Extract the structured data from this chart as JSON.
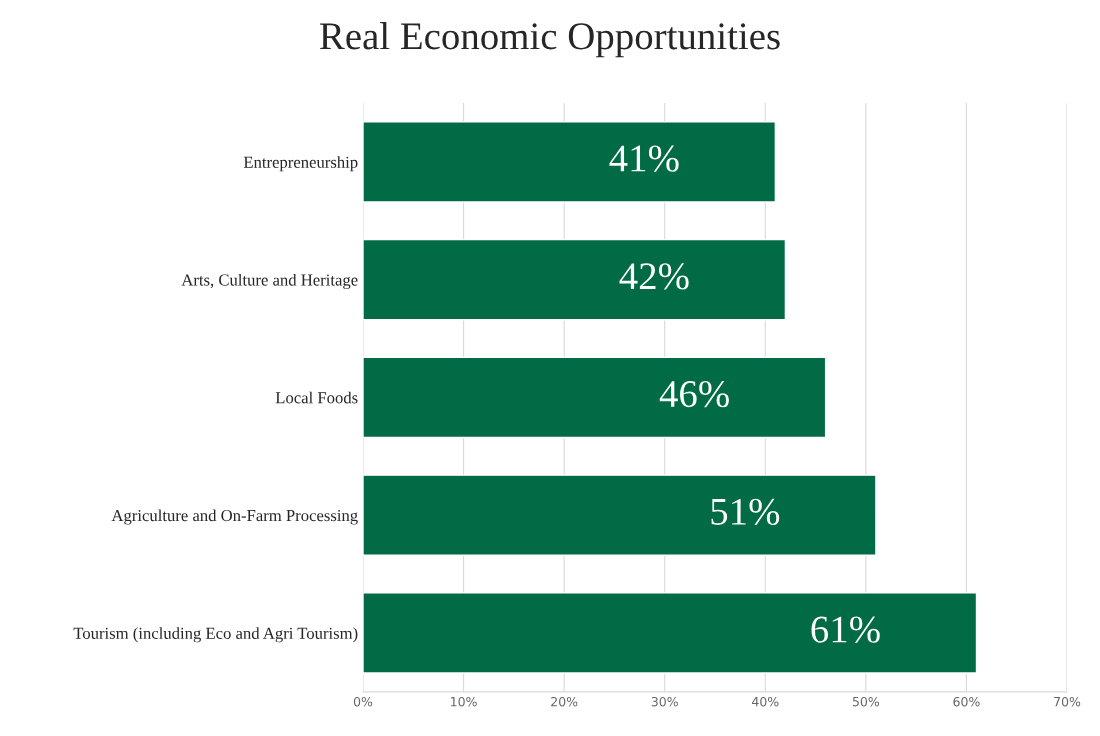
{
  "chart_data": {
    "type": "bar",
    "orientation": "horizontal",
    "title": "Real Economic Opportunities",
    "categories": [
      "Entrepreneurship",
      "Arts, Culture and Heritage",
      "Local Foods",
      "Agriculture and On-Farm Processing",
      "Tourism (including Eco and Agri Tourism)"
    ],
    "values": [
      41,
      42,
      46,
      51,
      61
    ],
    "value_labels": [
      "41%",
      "42%",
      "46%",
      "51%",
      "61%"
    ],
    "color": "#006b45",
    "xlim": [
      0,
      70
    ],
    "xticks": [
      {
        "value": 0,
        "label": "0%"
      },
      {
        "value": 10,
        "label": "10%"
      },
      {
        "value": 20,
        "label": "20%"
      },
      {
        "value": 30,
        "label": "30%"
      },
      {
        "value": 40,
        "label": "40%"
      },
      {
        "value": 50,
        "label": "50%"
      },
      {
        "value": 60,
        "label": "60%"
      },
      {
        "value": 70,
        "label": "70%"
      }
    ],
    "grid": "x",
    "legend": false
  }
}
